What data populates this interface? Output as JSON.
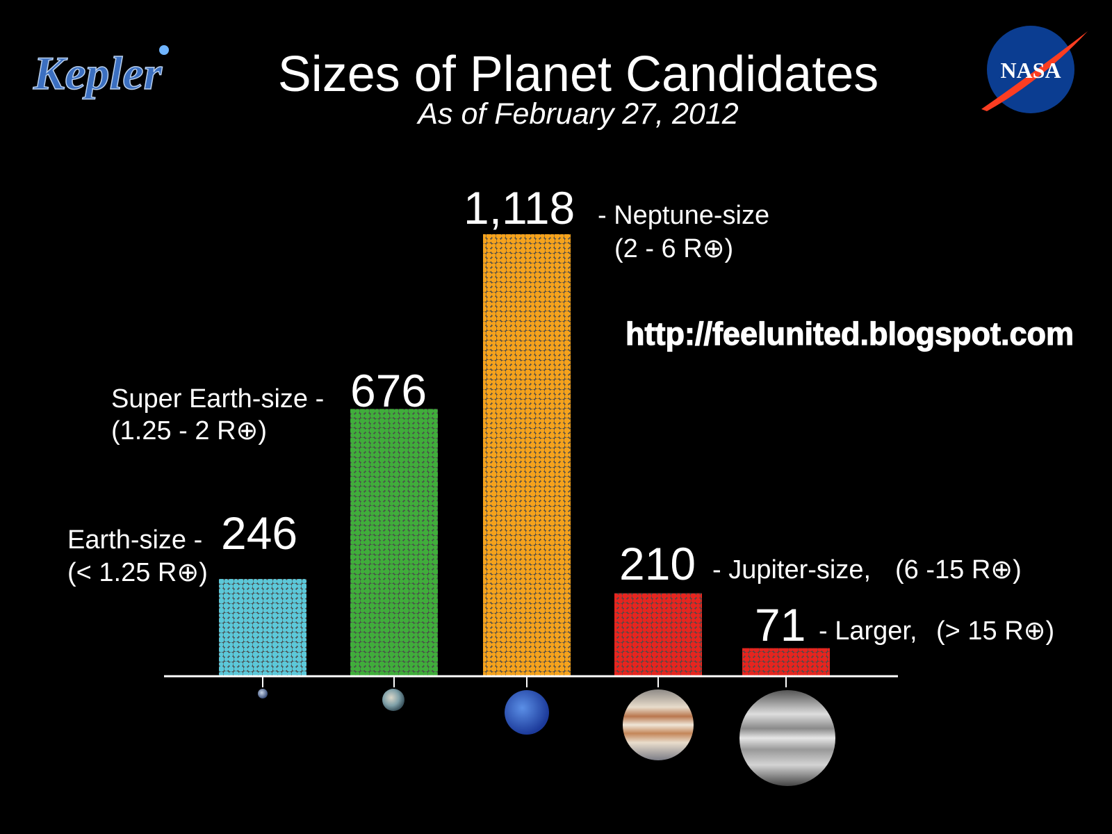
{
  "chart_data": {
    "type": "bar",
    "title": "Sizes of Planet Candidates",
    "subtitle": "As of February 27, 2012",
    "logo_left": "Kepler",
    "logo_right": "NASA",
    "watermark": "http://feelunited.blogspot.com",
    "categories": [
      "Earth-size -",
      "Super Earth-size -",
      "- Neptune-size",
      "- Jupiter-size,",
      "- Larger,"
    ],
    "size_ranges": [
      "(< 1.25 R⊕)",
      "(1.25 - 2 R⊕)",
      "(2 - 6 R⊕)",
      "(6 -15 R⊕)",
      "(> 15 R⊕)"
    ],
    "values": [
      246,
      676,
      1118,
      210,
      71
    ],
    "value_labels": [
      "246",
      "676",
      "1,118",
      "210",
      "71"
    ],
    "colors": [
      "#5cc8d9",
      "#40ad3b",
      "#f5a21c",
      "#e6251f",
      "#e6251f"
    ]
  }
}
